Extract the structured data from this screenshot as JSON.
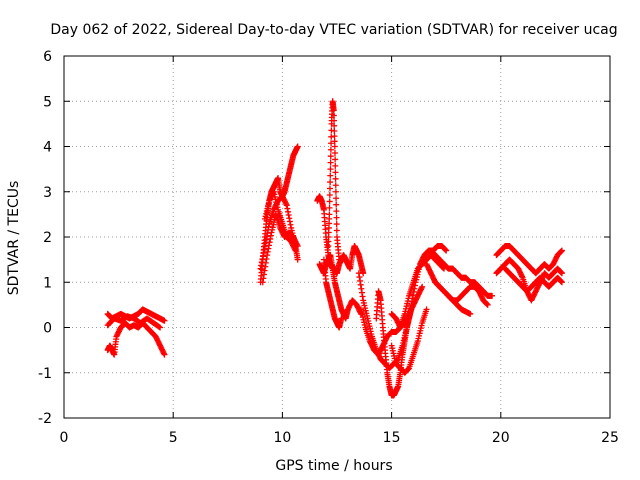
{
  "chart_data": {
    "type": "scatter",
    "title": "Day 062 of 2022, Sidereal Day-to-day VTEC variation (SDTVAR) for receiver ucag",
    "xlabel": "GPS time / hours",
    "ylabel": "SDTVAR / TECUs",
    "xlim": [
      0,
      25
    ],
    "ylim": [
      -2,
      6
    ],
    "xticks": [
      "0",
      "5",
      "10",
      "15",
      "20",
      "25"
    ],
    "yticks": [
      "-2",
      "-1",
      "0",
      "1",
      "2",
      "3",
      "4",
      "5",
      "6"
    ],
    "grid": true,
    "marker": "plus",
    "series": [
      {
        "color": "#ff0000",
        "segments": [
          {
            "x": [
              2.0,
              2.2,
              2.4,
              2.6,
              2.8,
              3.0,
              3.2,
              3.4,
              3.6,
              3.8,
              4.0,
              4.2,
              4.4,
              4.6
            ],
            "y": [
              0.3,
              0.2,
              0.25,
              0.3,
              0.25,
              0.2,
              0.25,
              0.3,
              0.4,
              0.35,
              0.3,
              0.25,
              0.2,
              0.15
            ]
          },
          {
            "x": [
              2.0,
              2.1,
              2.2,
              2.3,
              2.4,
              2.6,
              2.8,
              3.0,
              3.2,
              3.4,
              3.6,
              3.8,
              4.0,
              4.2,
              4.4,
              4.6
            ],
            "y": [
              -0.5,
              -0.4,
              -0.5,
              -0.6,
              -0.2,
              0.0,
              0.1,
              0.0,
              0.05,
              0.0,
              0.1,
              0.0,
              -0.1,
              -0.2,
              -0.4,
              -0.6
            ]
          },
          {
            "x": [
              2.0,
              2.3,
              2.6,
              2.9,
              3.2,
              3.5,
              3.8,
              4.1,
              4.4
            ],
            "y": [
              0.05,
              0.2,
              0.15,
              0.25,
              0.2,
              0.1,
              0.2,
              0.1,
              0.0
            ]
          },
          {
            "x": [
              9.0,
              9.1,
              9.2,
              9.3,
              9.4,
              9.5,
              9.6,
              9.7,
              9.8,
              9.9,
              10.0,
              10.1,
              10.2,
              10.3,
              10.4,
              10.5,
              10.6,
              10.7
            ],
            "y": [
              1.0,
              1.5,
              2.0,
              2.5,
              2.8,
              3.0,
              3.1,
              3.2,
              3.3,
              3.0,
              2.9,
              3.0,
              3.2,
              3.4,
              3.6,
              3.8,
              3.9,
              4.0
            ]
          },
          {
            "x": [
              9.0,
              9.2,
              9.4,
              9.6,
              9.8,
              10.0,
              10.2,
              10.4,
              10.6,
              10.7
            ],
            "y": [
              1.3,
              1.8,
              2.3,
              2.6,
              2.8,
              2.9,
              2.7,
              2.2,
              1.8,
              1.5
            ]
          },
          {
            "x": [
              9.1,
              9.3,
              9.5,
              9.7,
              9.9,
              10.1,
              10.3,
              10.5,
              10.7
            ],
            "y": [
              1.0,
              1.6,
              2.1,
              2.5,
              2.2,
              2.0,
              2.1,
              2.0,
              1.8
            ]
          },
          {
            "x": [
              9.2,
              9.4,
              9.6,
              9.8,
              10.0,
              10.2,
              10.4,
              10.6
            ],
            "y": [
              2.4,
              2.8,
              3.0,
              2.6,
              2.3,
              2.0,
              1.9,
              1.7
            ]
          },
          {
            "x": [
              11.6,
              11.7,
              11.8,
              11.9,
              12.0,
              12.1,
              12.2,
              12.3,
              12.4,
              12.5,
              12.6,
              12.7,
              12.8,
              12.9,
              13.0,
              13.1,
              13.2,
              13.3,
              13.4,
              13.5,
              13.6,
              13.7
            ],
            "y": [
              2.8,
              2.9,
              2.8,
              2.6,
              2.0,
              1.6,
              1.4,
              1.3,
              1.3,
              1.2,
              1.4,
              1.5,
              1.6,
              1.5,
              1.4,
              1.3,
              1.6,
              1.8,
              1.7,
              1.6,
              1.4,
              1.2
            ]
          },
          {
            "x": [
              11.7,
              11.8,
              11.9,
              12.0,
              12.1,
              12.2,
              12.3,
              12.4,
              12.5,
              12.6,
              12.7,
              12.8,
              12.9,
              13.0,
              13.2,
              13.4,
              13.6
            ],
            "y": [
              1.4,
              1.3,
              1.2,
              1.4,
              1.5,
              1.6,
              1.3,
              1.0,
              0.8,
              0.6,
              0.4,
              0.3,
              0.2,
              0.4,
              0.6,
              0.5,
              0.3
            ]
          },
          {
            "x": [
              12.1,
              12.15,
              12.2,
              12.25,
              12.3,
              12.35,
              12.4,
              12.45,
              12.5,
              12.6
            ],
            "y": [
              1.8,
              2.5,
              3.5,
              4.5,
              5.0,
              4.8,
              4.0,
              3.0,
              2.0,
              1.5
            ]
          },
          {
            "x": [
              11.9,
              12.0,
              12.1,
              12.2,
              12.3,
              12.4,
              12.5,
              12.6,
              12.7
            ],
            "y": [
              1.5,
              1.0,
              0.8,
              0.6,
              0.4,
              0.2,
              0.1,
              0.0,
              0.2
            ]
          },
          {
            "x": [
              13.5,
              13.7,
              13.9,
              14.1,
              14.3,
              14.5,
              14.7,
              14.9,
              15.1,
              15.3,
              15.5,
              15.7,
              15.9,
              16.1,
              16.3,
              16.5,
              16.7,
              16.9,
              17.1,
              17.3,
              17.5
            ],
            "y": [
              1.2,
              0.6,
              0.2,
              -0.2,
              -0.5,
              -0.7,
              -0.8,
              -0.9,
              -0.8,
              -0.7,
              -0.4,
              0.0,
              0.5,
              1.0,
              1.4,
              1.6,
              1.7,
              1.7,
              1.8,
              1.8,
              1.7
            ]
          },
          {
            "x": [
              13.6,
              13.8,
              14.0,
              14.2,
              14.4,
              14.6,
              14.8,
              15.0,
              15.2,
              15.4,
              15.6,
              15.8,
              16.0,
              16.2,
              16.4,
              16.6,
              16.8,
              17.0,
              17.2,
              17.4
            ],
            "y": [
              0.4,
              0.0,
              -0.3,
              -0.5,
              -0.6,
              -0.4,
              -0.2,
              -0.1,
              -0.1,
              0.0,
              0.3,
              0.7,
              1.0,
              1.3,
              1.4,
              1.5,
              1.6,
              1.5,
              1.4,
              1.3
            ]
          },
          {
            "x": [
              14.3,
              14.4,
              14.5,
              14.6,
              14.7,
              14.8,
              14.9,
              15.0,
              15.1,
              15.2,
              15.3,
              15.4,
              15.5,
              15.6,
              15.7,
              15.8,
              15.9
            ],
            "y": [
              0.2,
              0.8,
              0.6,
              0.0,
              -0.5,
              -1.0,
              -1.3,
              -1.5,
              -1.5,
              -1.4,
              -1.3,
              -1.0,
              -0.6,
              -0.3,
              0.0,
              0.2,
              0.4
            ]
          },
          {
            "x": [
              15.0,
              15.2,
              15.4,
              15.6,
              15.8,
              16.0,
              16.2,
              16.4,
              16.6
            ],
            "y": [
              -0.4,
              -0.8,
              -0.9,
              -1.0,
              -0.9,
              -0.6,
              -0.3,
              0.1,
              0.4
            ]
          },
          {
            "x": [
              15.0,
              15.2,
              15.4,
              15.6,
              15.8,
              16.0,
              16.2,
              16.4
            ],
            "y": [
              0.3,
              0.2,
              0.0,
              0.1,
              0.3,
              0.5,
              0.7,
              0.9
            ]
          },
          {
            "x": [
              16.8,
              17.0,
              17.2,
              17.4,
              17.6,
              17.8,
              18.0,
              18.2,
              18.4,
              18.6,
              18.8,
              19.0,
              19.2,
              19.4,
              19.6
            ],
            "y": [
              1.7,
              1.6,
              1.5,
              1.4,
              1.3,
              1.3,
              1.2,
              1.1,
              1.1,
              1.0,
              1.0,
              0.9,
              0.8,
              0.7,
              0.7
            ]
          },
          {
            "x": [
              16.6,
              16.8,
              17.0,
              17.2,
              17.4,
              17.6,
              17.8,
              18.0,
              18.2,
              18.4,
              18.6,
              18.8,
              19.0,
              19.2,
              19.4
            ],
            "y": [
              1.4,
              1.2,
              1.0,
              0.9,
              0.8,
              0.7,
              0.6,
              0.6,
              0.7,
              0.8,
              0.9,
              0.9,
              0.8,
              0.6,
              0.5
            ]
          },
          {
            "x": [
              17.0,
              17.2,
              17.4,
              17.6,
              17.8,
              18.0,
              18.2,
              18.4,
              18.6
            ],
            "y": [
              1.0,
              0.9,
              0.8,
              0.7,
              0.6,
              0.5,
              0.4,
              0.35,
              0.3
            ]
          },
          {
            "x": [
              19.8,
              20.0,
              20.2,
              20.4,
              20.6,
              20.8,
              21.0,
              21.2,
              21.4,
              21.6,
              21.8,
              22.0,
              22.2,
              22.4,
              22.6,
              22.8
            ],
            "y": [
              1.6,
              1.7,
              1.8,
              1.8,
              1.7,
              1.6,
              1.5,
              1.4,
              1.3,
              1.2,
              1.3,
              1.4,
              1.3,
              1.4,
              1.6,
              1.7
            ]
          },
          {
            "x": [
              19.8,
              20.0,
              20.2,
              20.4,
              20.6,
              20.8,
              21.0,
              21.2,
              21.4,
              21.6,
              21.8,
              22.0,
              22.2,
              22.4,
              22.6,
              22.8
            ],
            "y": [
              1.2,
              1.3,
              1.4,
              1.5,
              1.4,
              1.3,
              1.1,
              0.8,
              0.6,
              0.8,
              1.0,
              1.2,
              1.1,
              1.2,
              1.3,
              1.2
            ]
          },
          {
            "x": [
              20.2,
              20.4,
              20.6,
              20.8,
              21.0,
              21.2,
              21.4,
              21.6,
              21.8,
              22.0,
              22.2,
              22.4,
              22.6,
              22.8
            ],
            "y": [
              1.3,
              1.2,
              1.1,
              1.0,
              0.9,
              0.8,
              0.9,
              1.0,
              1.1,
              1.0,
              0.9,
              1.0,
              1.1,
              1.0
            ]
          }
        ]
      }
    ]
  }
}
